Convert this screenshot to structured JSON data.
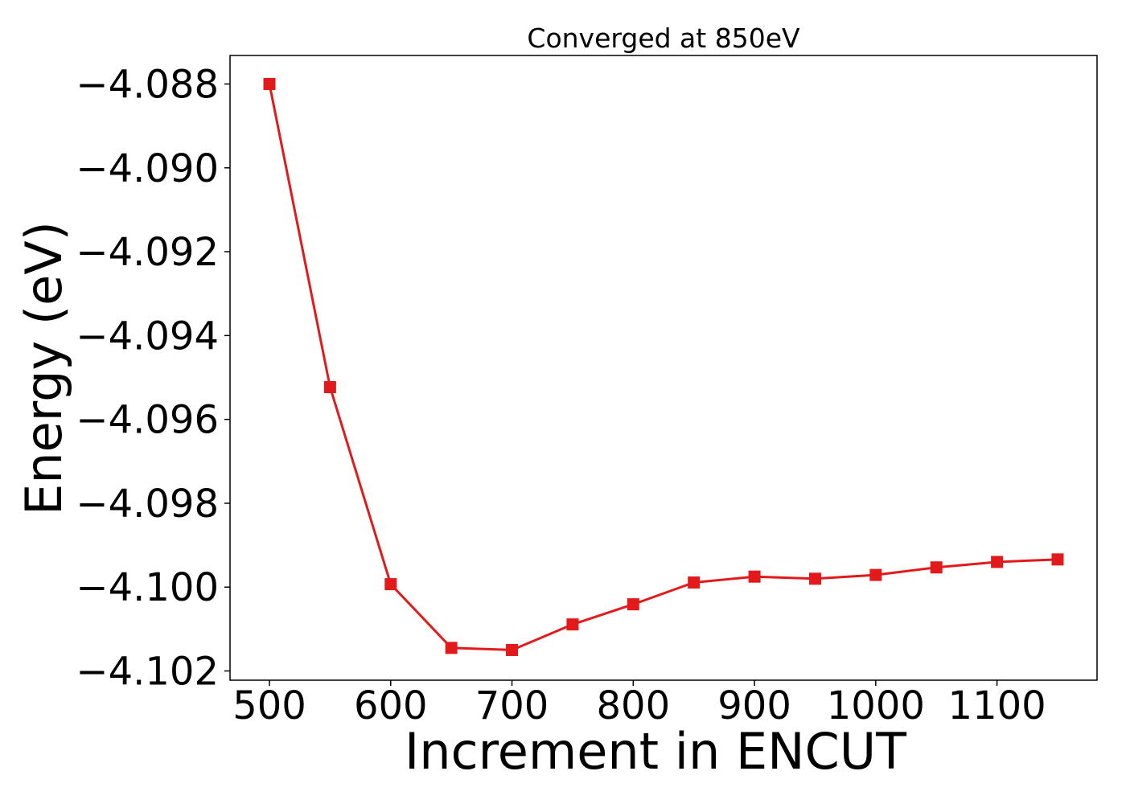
{
  "chart_data": {
    "type": "line",
    "title": "Converged at 850eV",
    "xlabel": "Increment in ENCUT",
    "ylabel": "Energy (eV)",
    "x_ticks": [
      "500",
      "600",
      "700",
      "800",
      "900",
      "1000",
      "1100"
    ],
    "y_ticks": [
      "−4.088",
      "−4.090",
      "−4.092",
      "−4.094",
      "−4.096",
      "−4.098",
      "−4.100",
      "−4.102"
    ],
    "xlim": [
      467.5,
      1182.5
    ],
    "ylim": [
      -4.10222,
      -4.08732
    ],
    "grid": false,
    "legend": "none",
    "marker": "square",
    "series": [
      {
        "color": "#e31a1c",
        "x": [
          500,
          550,
          600,
          650,
          700,
          750,
          800,
          850,
          900,
          950,
          1000,
          1050,
          1100,
          1150
        ],
        "y": [
          -4.088,
          -4.09523,
          -4.09993,
          -4.10145,
          -4.1015,
          -4.10089,
          -4.10041,
          -4.09989,
          -4.09975,
          -4.0998,
          -4.09971,
          -4.09953,
          -4.0994,
          -4.09934
        ]
      }
    ]
  }
}
